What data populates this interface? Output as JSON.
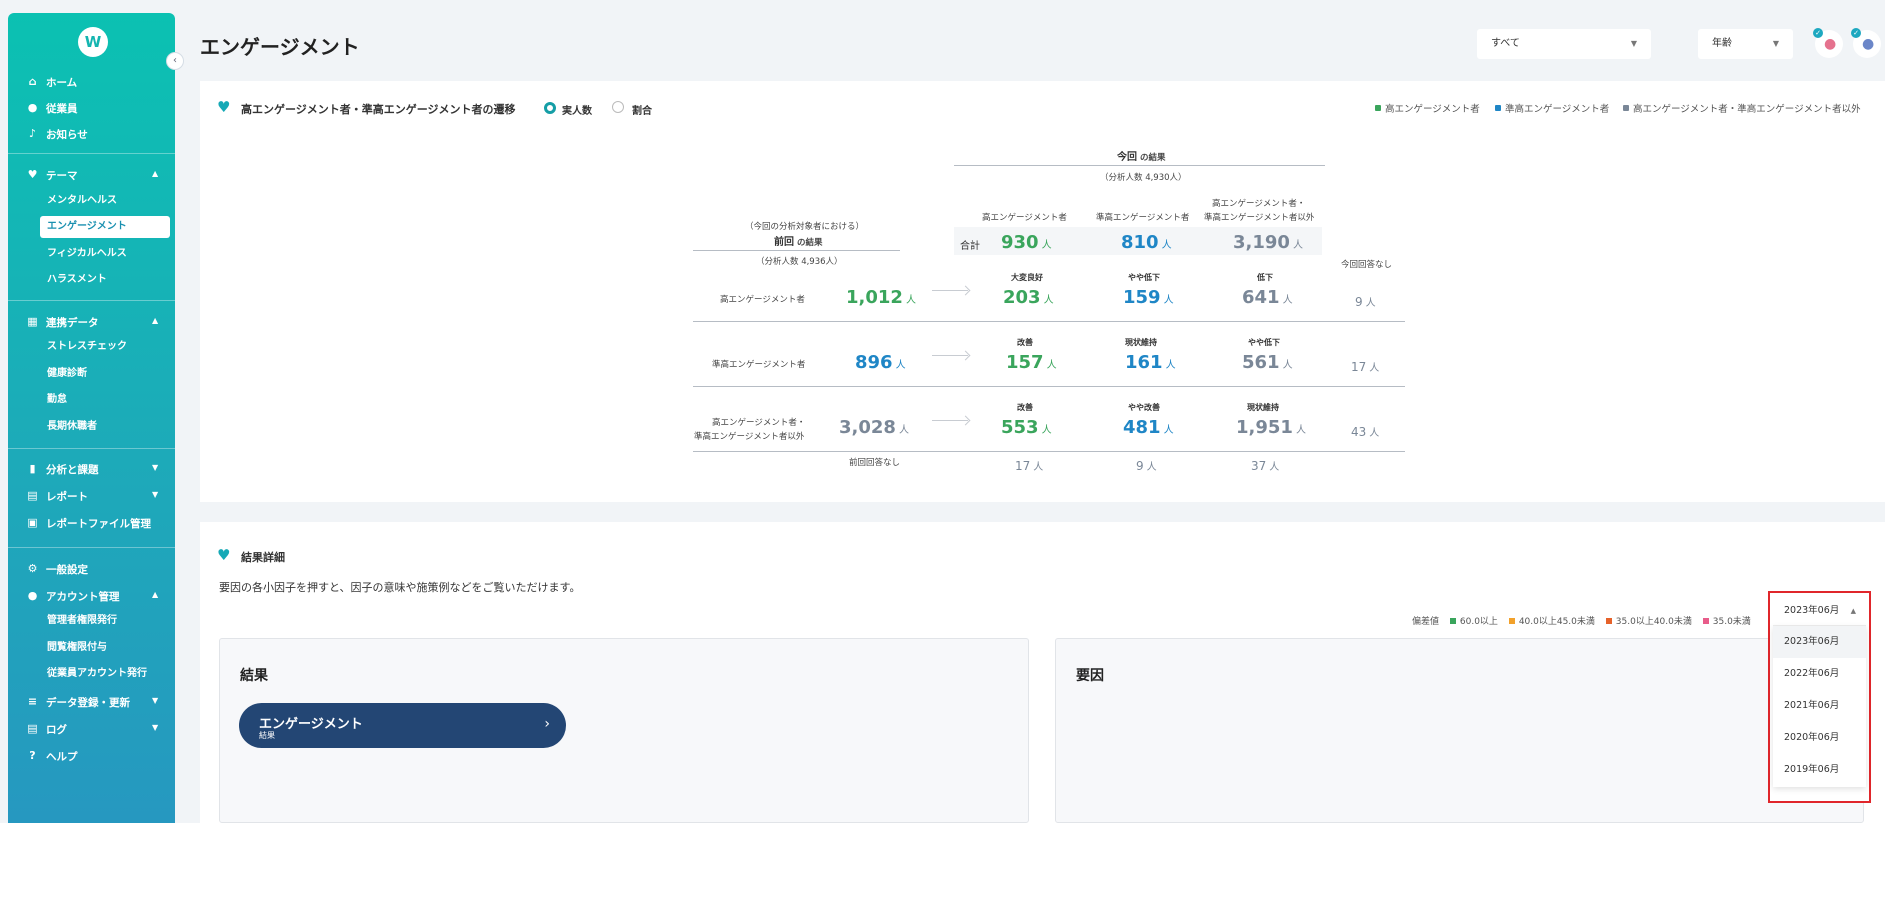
{
  "sidebar": {
    "logo": "W",
    "collapse_icon": "chevron-left",
    "items": {
      "home": "ホーム",
      "employees": "従業員",
      "notices": "お知らせ",
      "theme": "テーマ",
      "linked_data": "連携データ",
      "analysis": "分析と課題",
      "report": "レポート",
      "report_files": "レポートファイル管理",
      "general": "一般設定",
      "account": "アカウント管理",
      "data_reg": "データ登録・更新",
      "log": "ログ",
      "help": "ヘルプ"
    },
    "theme_sub": [
      "メンタルヘルス",
      "エンゲージメント",
      "フィジカルヘルス",
      "ハラスメント"
    ],
    "linked_sub": [
      "ストレスチェック",
      "健康診断",
      "勤怠",
      "長期休職者"
    ],
    "account_sub": [
      "管理者権限発行",
      "閲覧権限付与",
      "従業員アカウント発行"
    ]
  },
  "header": {
    "title": "エンゲージメント",
    "filter_all": "すべて",
    "filter_age": "年齢"
  },
  "transition": {
    "title": "高エンゲージメント者・準高エンゲージメント者の遷移",
    "radio_count": "実人数",
    "radio_ratio": "割合",
    "legend": [
      "高エンゲージメント者",
      "準高エンゲージメント者",
      "高エンゲージメント者・準高エンゲージメント者以外"
    ],
    "legend_colors": [
      "#3aa55c",
      "#1f86c6",
      "#7a8797"
    ],
    "current_label": "今回",
    "current_suffix": "の結果",
    "current_analyzed": "（分析人数 4,930人）",
    "prev_caption": "（今回の分析対象者における）",
    "prev_label": "前回",
    "prev_suffix": "の結果",
    "prev_analyzed": "（分析人数 4,936人）",
    "col_high": "高エンゲージメント者",
    "col_semi": "準高エンゲージメント者",
    "col_other_1": "高エンゲージメント者・",
    "col_other_2": "準高エンゲージメント者以外",
    "total_label": "合計",
    "total_high": "930",
    "total_semi": "810",
    "total_other": "3,190",
    "unit": "人",
    "no_answer_now": "今回回答なし",
    "no_answer_prev": "前回回答なし",
    "rows": [
      {
        "label1": "高エンゲージメント者",
        "label2": "",
        "prev": "1,012",
        "c1": "大変良好",
        "v1": "203",
        "c2": "やや低下",
        "v2": "159",
        "c3": "低下",
        "v3": "641",
        "na": "9"
      },
      {
        "label1": "準高エンゲージメント者",
        "label2": "",
        "prev": "896",
        "c1": "改善",
        "v1": "157",
        "c2": "現状維持",
        "v2": "161",
        "c3": "やや低下",
        "v3": "561",
        "na": "17"
      },
      {
        "label1": "高エンゲージメント者・",
        "label2": "準高エンゲージメント者以外",
        "prev": "3,028",
        "c1": "改善",
        "v1": "553",
        "c2": "やや改善",
        "v2": "481",
        "c3": "現状維持",
        "v3": "1,951",
        "na": "43"
      }
    ],
    "prev_na": {
      "v1": "17",
      "v2": "9",
      "v3": "37"
    }
  },
  "details": {
    "title": "結果詳細",
    "description": "要因の各小因子を押すと、因子の意味や施策例などをご覧いただけます。",
    "dev_label": "偏差値",
    "dev_levels": [
      "60.0以上",
      "40.0以上45.0未満",
      "35.0以上40.0未満",
      "35.0未満"
    ],
    "dev_colors": [
      "#3aa55c",
      "#f2a12b",
      "#e6622a",
      "#e85c8a"
    ],
    "result_title": "結果",
    "factor_title": "要因",
    "engagement_btn": "エンゲージメント",
    "engagement_sub": "結果",
    "date_selected": "2023年06月",
    "date_options": [
      "2023年06月",
      "2022年06月",
      "2021年06月",
      "2020年06月",
      "2019年06月"
    ]
  }
}
